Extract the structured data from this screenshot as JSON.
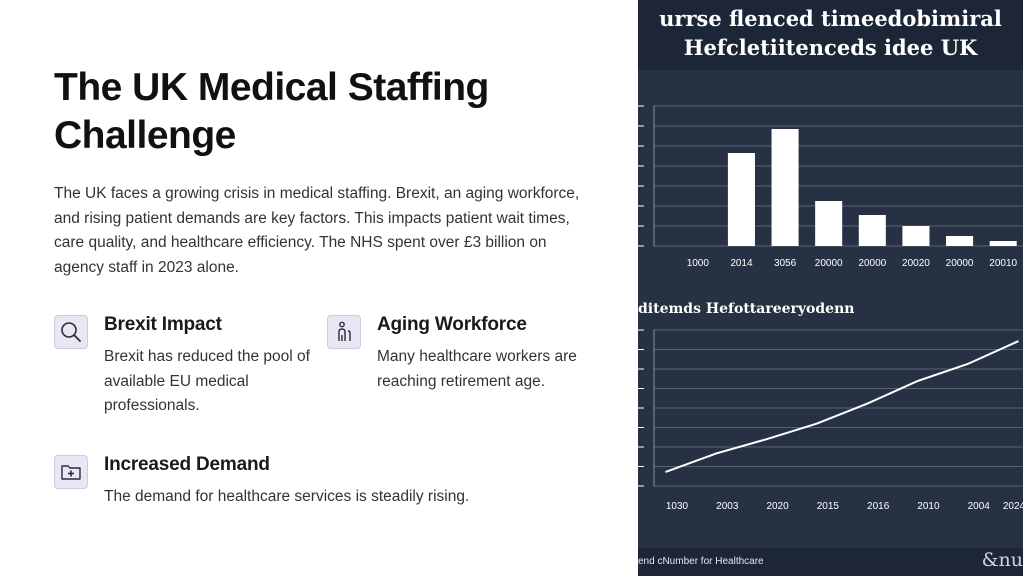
{
  "slide": {
    "title": "The UK Medical Staffing Challenge",
    "intro": "The UK faces a growing crisis in medical staffing. Brexit, an aging workforce, and rising patient demands are key factors. This impacts patient wait times, care quality, and healthcare efficiency. The NHS spent over £3 billion on agency staff in 2023 alone.",
    "features": [
      {
        "title": "Brexit Impact",
        "description": "Brexit has reduced the pool of available EU medical professionals.",
        "icon": "search-icon"
      },
      {
        "title": "Aging Workforce",
        "description": "Many healthcare workers are reaching retirement age.",
        "icon": "elderly-person-icon"
      },
      {
        "title": "Increased Demand",
        "description": "The demand for healthcare services is steadily rising.",
        "icon": "medical-folder-icon"
      }
    ]
  },
  "infographic": {
    "title": "urrse flenced timeedobimiral\nHefcletiitenceds idee UK",
    "line_chart_title": "ditemds Hefottareeryodenn",
    "footer_text": "end cNumber for Healthcare",
    "brand_mark": "&nu",
    "colors": {
      "panel": "#263244",
      "header": "#1c2636",
      "marks": "#ffffff"
    }
  },
  "chart_data": [
    {
      "type": "bar",
      "title": "urrse flenced timeedobimiral Hefcletiitenceds idee UK",
      "categories": [
        "1000",
        "2014",
        "3056",
        "20000",
        "20000",
        "20020",
        "20000",
        "20010"
      ],
      "values": [
        0,
        93,
        117,
        45,
        31,
        20,
        10,
        5
      ],
      "ylim": [
        0,
        140
      ],
      "grid": true
    },
    {
      "type": "line",
      "title": "ditemds Hefottareeryodenn",
      "categories": [
        "1030",
        "2003",
        "2020",
        "2015",
        "2016",
        "2010",
        "2004",
        "2024"
      ],
      "values": [
        1.0,
        2.3,
        3.3,
        4.4,
        5.8,
        7.4,
        8.6,
        10.2
      ],
      "ylim": [
        0,
        11
      ],
      "grid": true
    }
  ]
}
